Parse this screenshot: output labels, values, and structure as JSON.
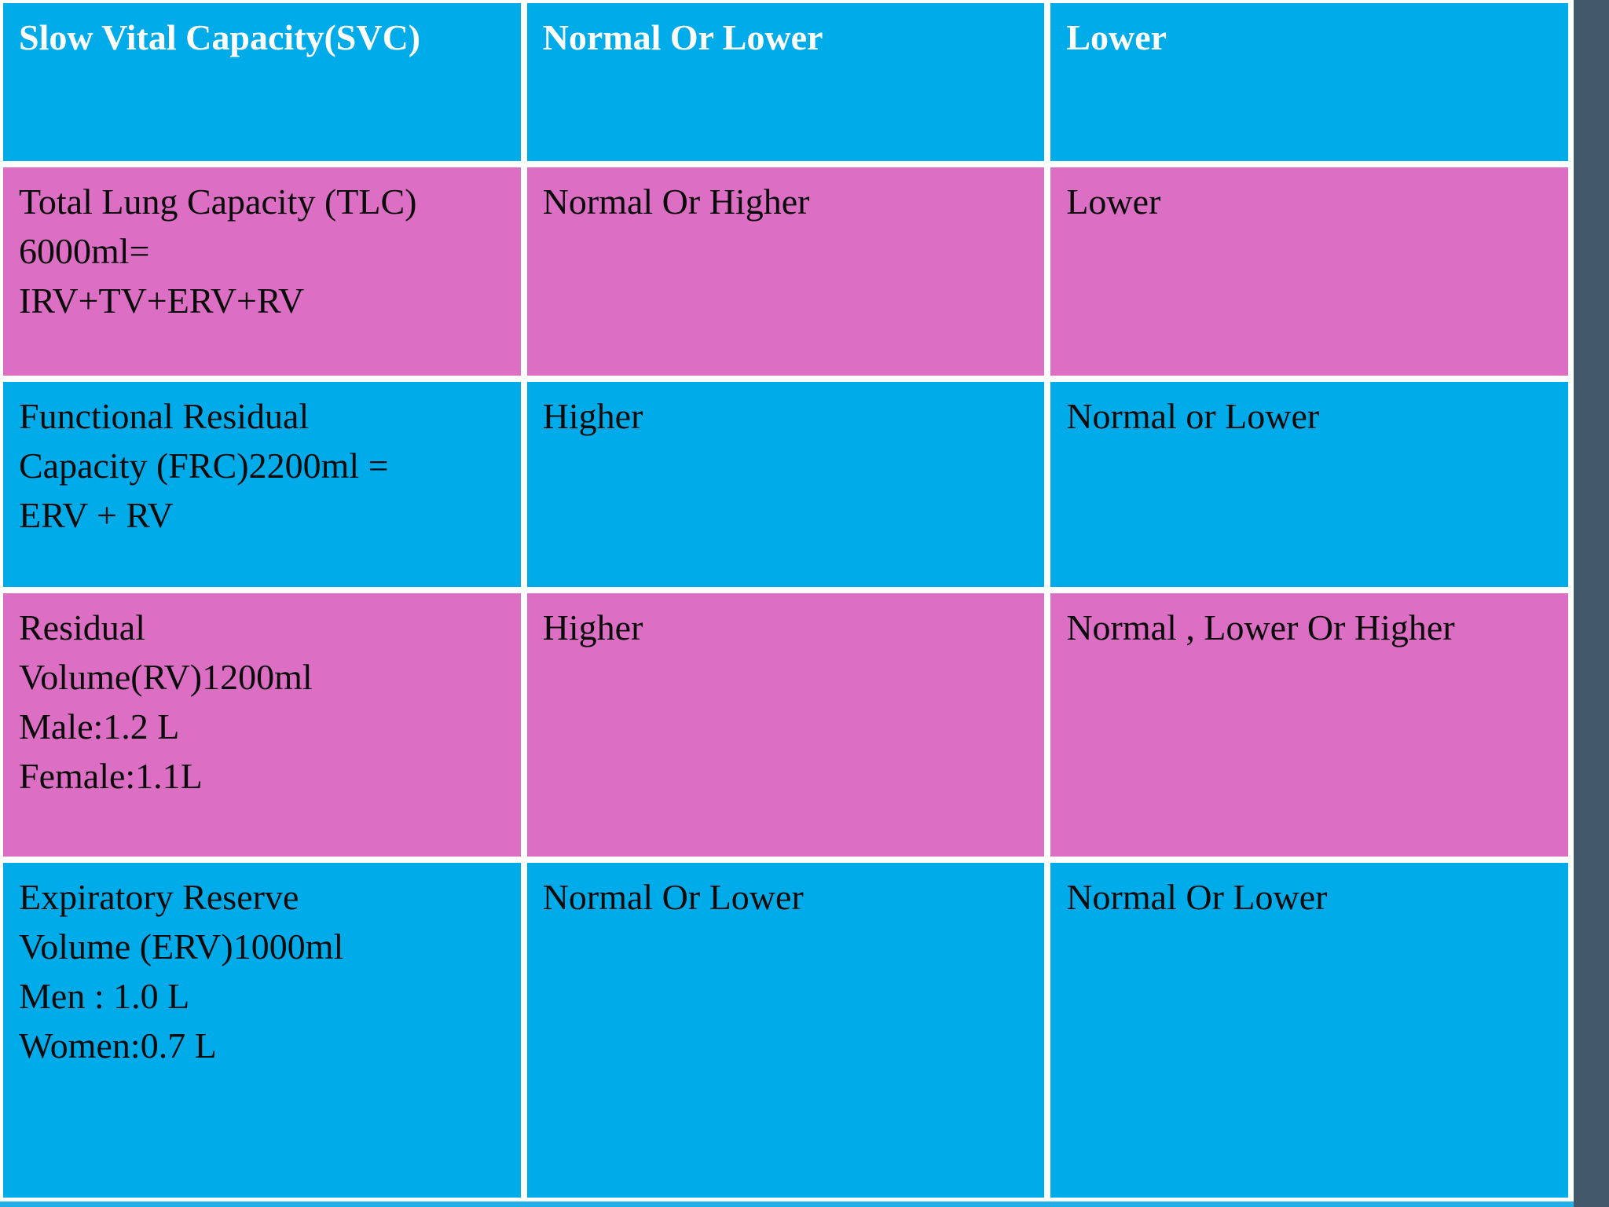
{
  "theme": {
    "cell_blue": "#00ABE9",
    "cell_pink": "#DC6EC4",
    "right_strip": "#41596B",
    "grid_border": "#FFFFFF",
    "header_text_color": "#FFFFFF",
    "body_text_color": "#0A0A0A",
    "slide_background": "#22B0E8"
  },
  "table": {
    "header": {
      "cells": [
        "Slow Vital Capacity(SVC)",
        "Normal Or Lower",
        "Lower"
      ]
    },
    "rows": [
      {
        "color": "pink",
        "cells": [
          "Total Lung Capacity (TLC)\n6000ml=\nIRV+TV+ERV+RV",
          "Normal Or Higher",
          "Lower"
        ]
      },
      {
        "color": "blue",
        "cells": [
          "Functional Residual\nCapacity (FRC)2200ml =\nERV + RV",
          "Higher",
          "Normal or Lower"
        ]
      },
      {
        "color": "pink",
        "cells": [
          "Residual\nVolume(RV)1200ml\nMale:1.2 L\nFemale:1.1L",
          "Higher",
          "Normal , Lower Or Higher"
        ]
      },
      {
        "color": "blue",
        "cells": [
          "Expiratory Reserve\nVolume (ERV)1000ml\nMen : 1.0 L\nWomen:0.7 L",
          "Normal Or Lower",
          "Normal Or Lower"
        ]
      }
    ]
  }
}
